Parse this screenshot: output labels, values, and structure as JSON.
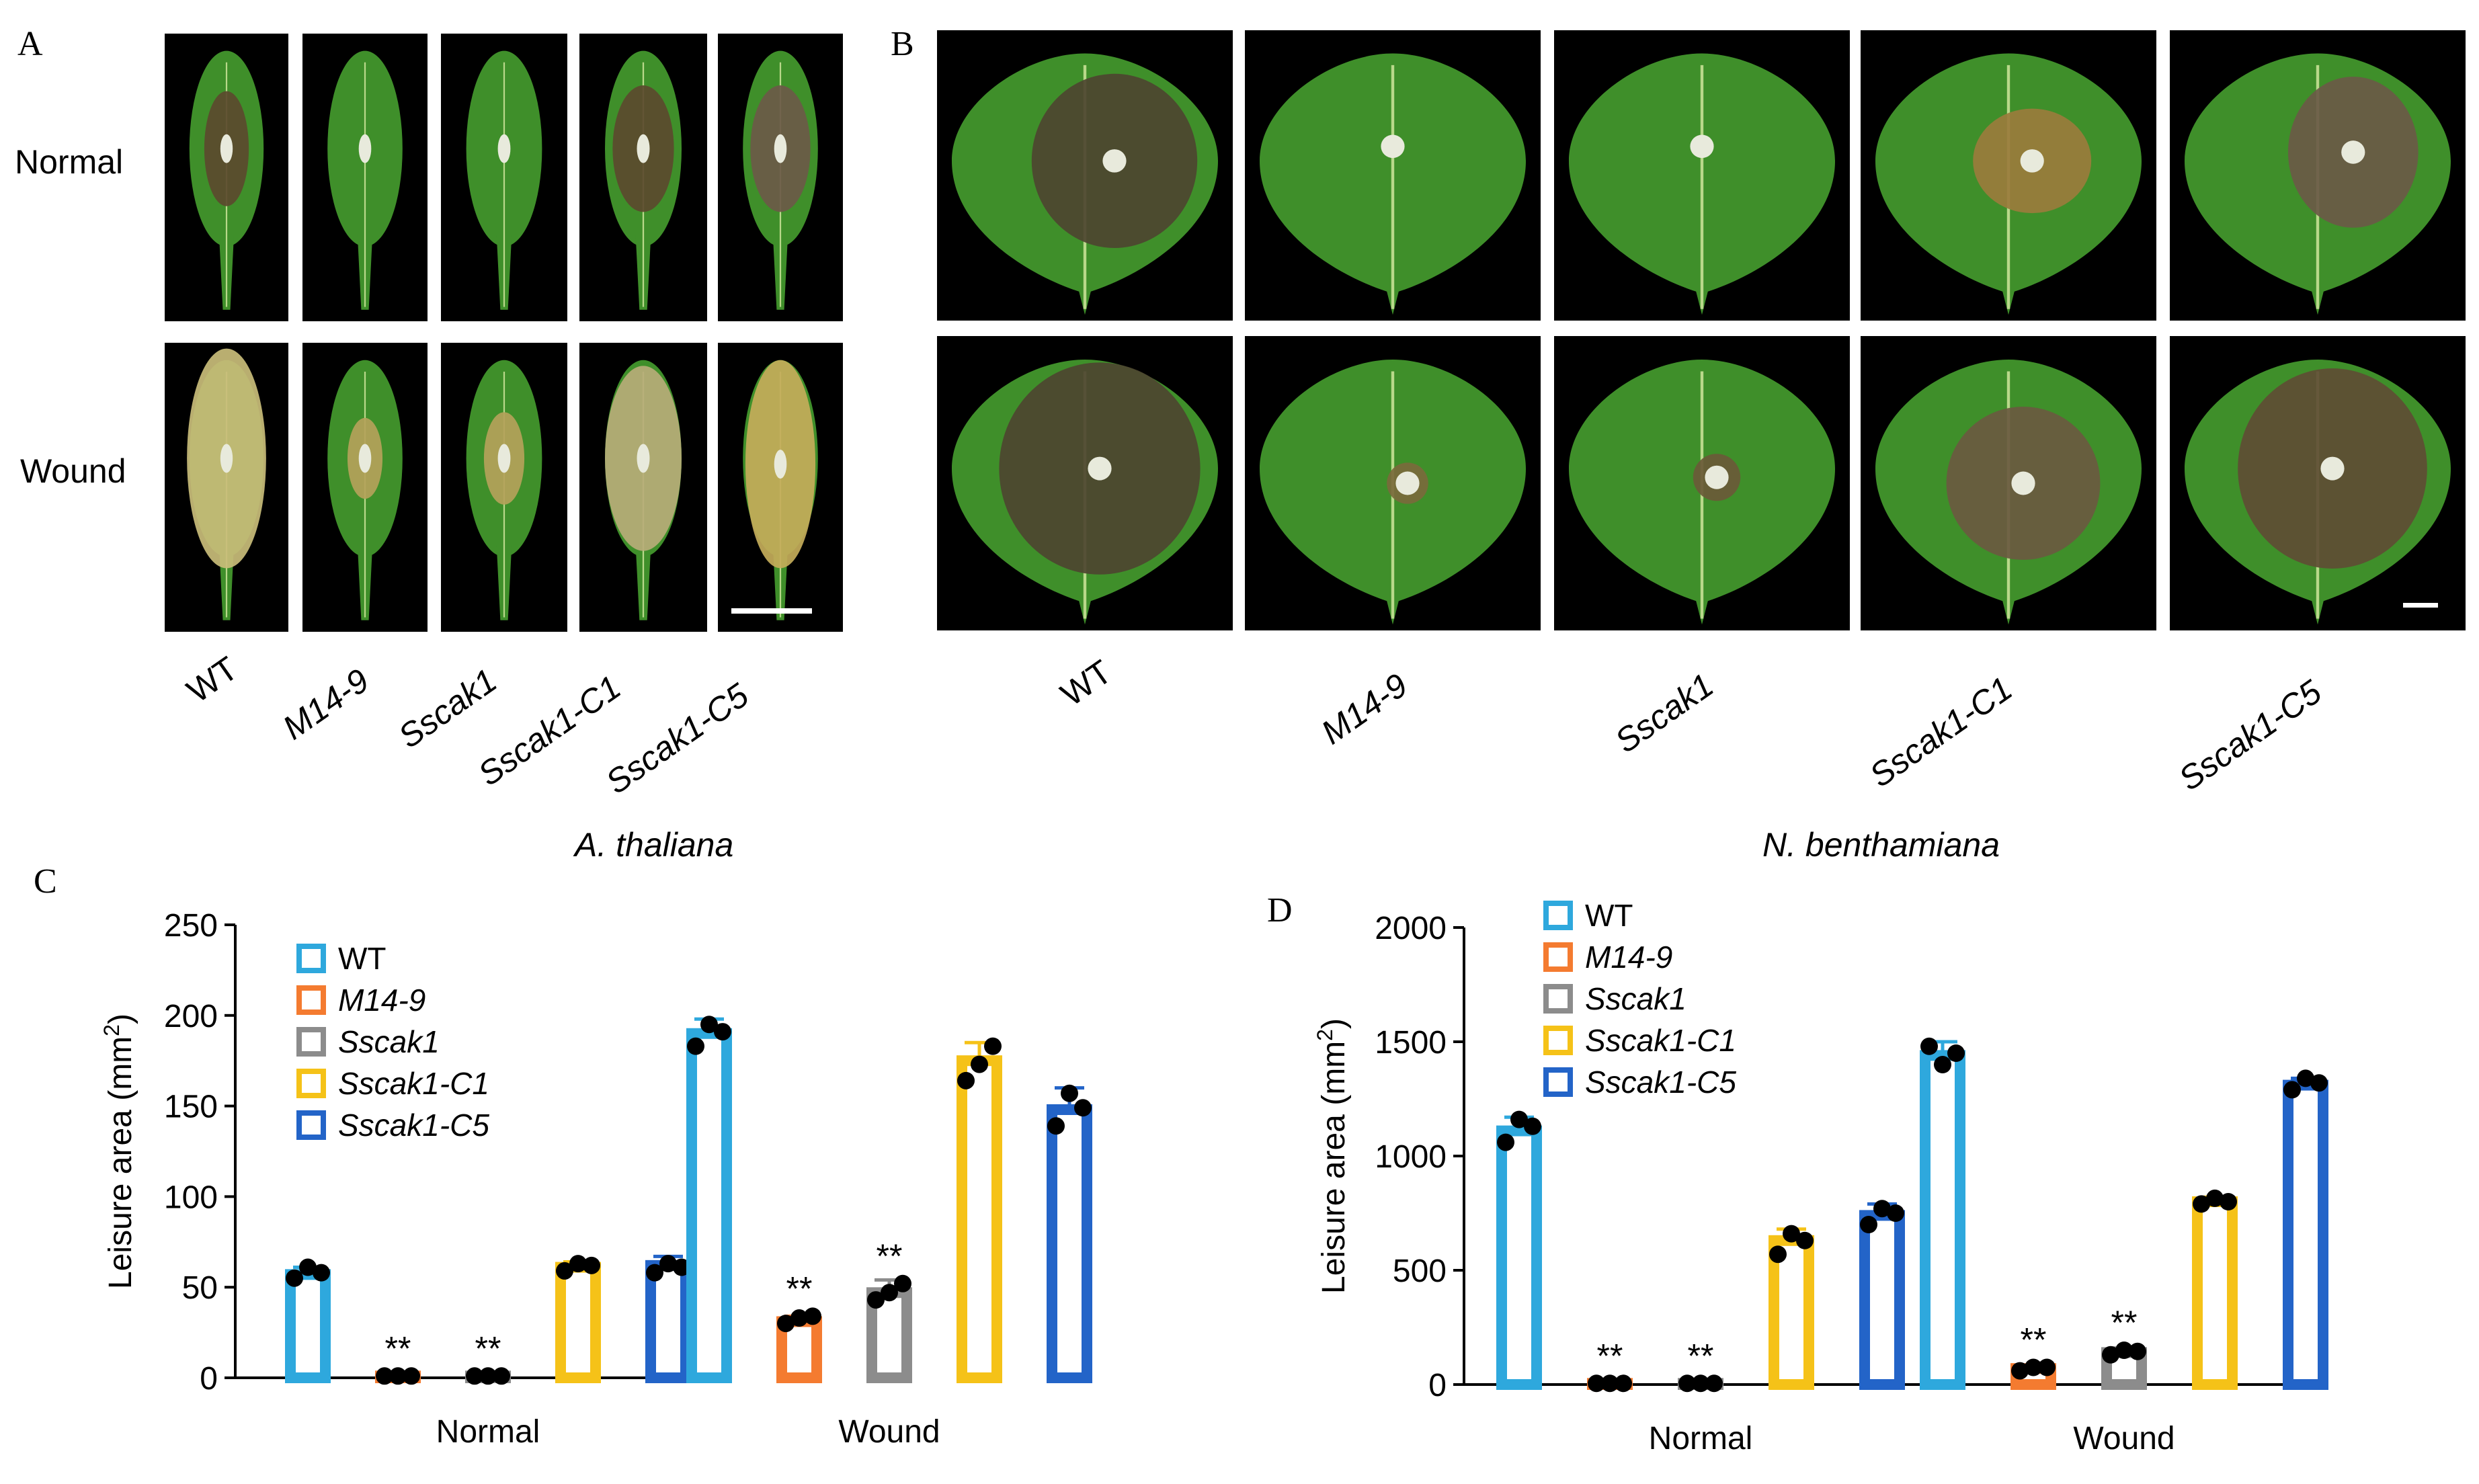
{
  "panels": {
    "A": {
      "letter": "A",
      "rows": [
        "Normal",
        "Wound"
      ],
      "species": "A. thaliana"
    },
    "B": {
      "letter": "B",
      "species": "N. benthamiana"
    },
    "C": {
      "letter": "C"
    },
    "D": {
      "letter": "D"
    }
  },
  "strains": [
    "WT",
    "M14-9",
    "Sscak1",
    "Sscak1-C1",
    "Sscak1-C5"
  ],
  "strain_italic": [
    false,
    true,
    true,
    true,
    true
  ],
  "chart_data": [
    {
      "id": "C",
      "type": "bar",
      "ylabel": "Leisure area (mm",
      "ylabel_sup": "2",
      "ylabel_close": ")",
      "ylim": [
        0,
        250
      ],
      "yticks": [
        "0",
        "50",
        "100",
        "150",
        "200",
        "250"
      ],
      "categories": [
        "Normal",
        "Wound"
      ],
      "legend_position": "top-left",
      "series": [
        {
          "name": "WT",
          "color": "#2ea8dd",
          "values": [
            57,
            190
          ],
          "error": [
            4,
            8
          ],
          "points": [
            [
              55,
              61,
              58
            ],
            [
              183,
              195,
              191
            ]
          ],
          "sig": [
            "",
            ""
          ]
        },
        {
          "name": "M14-9",
          "color": "#f47b30",
          "values": [
            1,
            31
          ],
          "error": [
            0,
            3
          ],
          "points": [
            [
              1,
              1,
              1
            ],
            [
              30,
              33,
              34
            ]
          ],
          "sig": [
            "**",
            "**"
          ]
        },
        {
          "name": "Sscak1",
          "color": "#8c8c8c",
          "values": [
            1,
            47
          ],
          "error": [
            0,
            7
          ],
          "points": [
            [
              1,
              1,
              1
            ],
            [
              43,
              47,
              52
            ]
          ],
          "sig": [
            "**",
            "**"
          ]
        },
        {
          "name": "Sscak1-C1",
          "color": "#f5c218",
          "values": [
            61,
            175
          ],
          "error": [
            3,
            10
          ],
          "points": [
            [
              59,
              63,
              62
            ],
            [
              164,
              173,
              183
            ]
          ],
          "sig": [
            "",
            ""
          ]
        },
        {
          "name": "Sscak1-C5",
          "color": "#2364c8",
          "values": [
            62,
            148
          ],
          "error": [
            5,
            12
          ],
          "points": [
            [
              58,
              63,
              61
            ],
            [
              139,
              157,
              149
            ]
          ],
          "sig": [
            "",
            ""
          ]
        }
      ]
    },
    {
      "id": "D",
      "type": "bar",
      "ylabel": "Leisure area (mm",
      "ylabel_sup": "2",
      "ylabel_close": ")",
      "ylim": [
        0,
        2000
      ],
      "yticks": [
        "0",
        "500",
        "1000",
        "1500",
        "2000"
      ],
      "categories": [
        "Normal",
        "Wound"
      ],
      "legend_position": "top-left",
      "series": [
        {
          "name": "WT",
          "color": "#2ea8dd",
          "values": [
            1110,
            1440
          ],
          "error": [
            60,
            60
          ],
          "points": [
            [
              1060,
              1160,
              1130
            ],
            [
              1480,
              1400,
              1450
            ]
          ],
          "sig": [
            "",
            ""
          ]
        },
        {
          "name": "M14-9",
          "color": "#f47b30",
          "values": [
            5,
            70
          ],
          "error": [
            0,
            15
          ],
          "points": [
            [
              5,
              5,
              5
            ],
            [
              60,
              75,
              75
            ]
          ],
          "sig": [
            "**",
            "**"
          ]
        },
        {
          "name": "Sscak1",
          "color": "#8c8c8c",
          "values": [
            5,
            140
          ],
          "error": [
            0,
            20
          ],
          "points": [
            [
              5,
              5,
              5
            ],
            [
              130,
              150,
              145
            ]
          ],
          "sig": [
            "**",
            "**"
          ]
        },
        {
          "name": "Sscak1-C1",
          "color": "#f5c218",
          "values": [
            630,
            800
          ],
          "error": [
            50,
            20
          ],
          "points": [
            [
              570,
              660,
              630
            ],
            [
              790,
              815,
              800
            ]
          ],
          "sig": [
            "",
            ""
          ]
        },
        {
          "name": "Sscak1-C5",
          "color": "#2364c8",
          "values": [
            740,
            1310
          ],
          "error": [
            50,
            30
          ],
          "points": [
            [
              700,
              770,
              750
            ],
            [
              1290,
              1340,
              1320
            ]
          ],
          "sig": [
            "",
            ""
          ]
        }
      ]
    }
  ],
  "colors": {
    "leaf_green": "#3f8f2a",
    "leaf_dark": "#2b6a1c",
    "lesion_brown": "#5b4a2e",
    "lesion_tan": "#b4a25a",
    "background": "#000000"
  },
  "icons": {
    "scale_bar": "scale-bar-icon"
  }
}
